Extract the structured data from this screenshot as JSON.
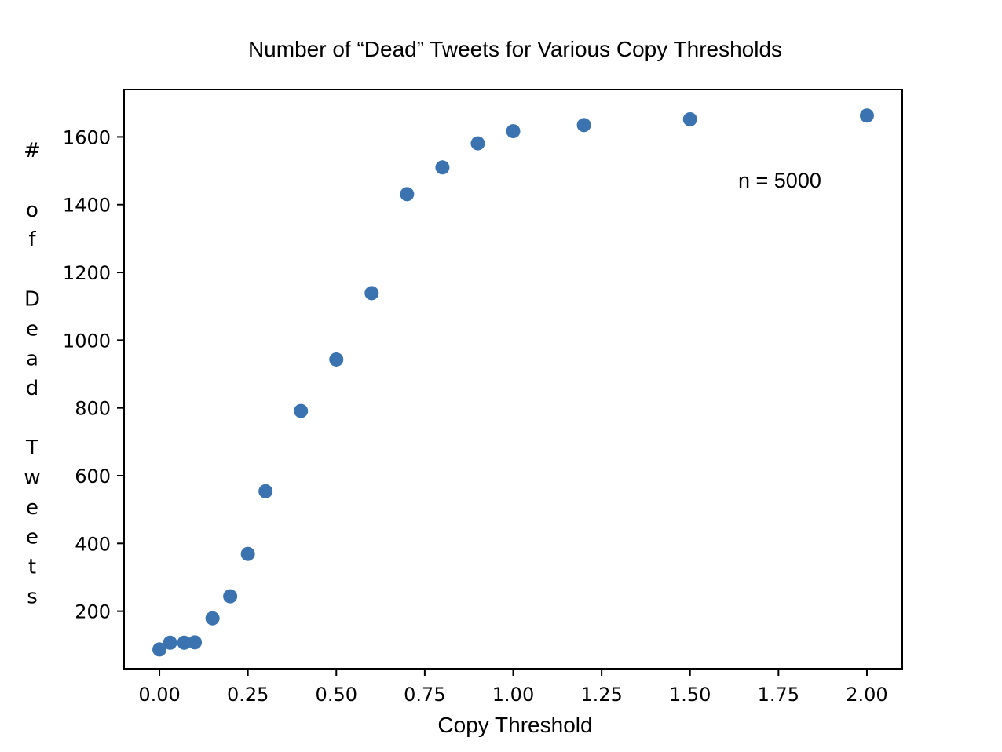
{
  "chart_data": {
    "type": "scatter",
    "title": "Number of “Dead” Tweets for Various Copy Thresholds",
    "xlabel": "Copy Threshold",
    "ylabel": "# of Dead Tweets",
    "annotation": "n = 5000",
    "xlim": [
      -0.1,
      2.1
    ],
    "ylim": [
      30,
      1740
    ],
    "x_ticks": [
      0.0,
      0.25,
      0.5,
      0.75,
      1.0,
      1.25,
      1.5,
      1.75,
      2.0
    ],
    "x_tick_labels": [
      "0.00",
      "0.25",
      "0.50",
      "0.75",
      "1.00",
      "1.25",
      "1.50",
      "1.75",
      "2.00"
    ],
    "y_ticks": [
      200,
      400,
      600,
      800,
      1000,
      1200,
      1400,
      1600
    ],
    "y_tick_labels": [
      "200",
      "400",
      "600",
      "800",
      "1000",
      "1200",
      "1400",
      "1600"
    ],
    "grid": false,
    "marker_color": "#3a73b0",
    "x": [
      0.0,
      0.03,
      0.07,
      0.1,
      0.15,
      0.2,
      0.25,
      0.3,
      0.4,
      0.5,
      0.6,
      0.7,
      0.8,
      0.9,
      1.0,
      1.2,
      1.5,
      2.0
    ],
    "y": [
      87,
      107,
      107,
      108,
      179,
      244,
      369,
      554,
      791,
      943,
      1139,
      1431,
      1510,
      1581,
      1617,
      1635,
      1652,
      1663
    ]
  }
}
